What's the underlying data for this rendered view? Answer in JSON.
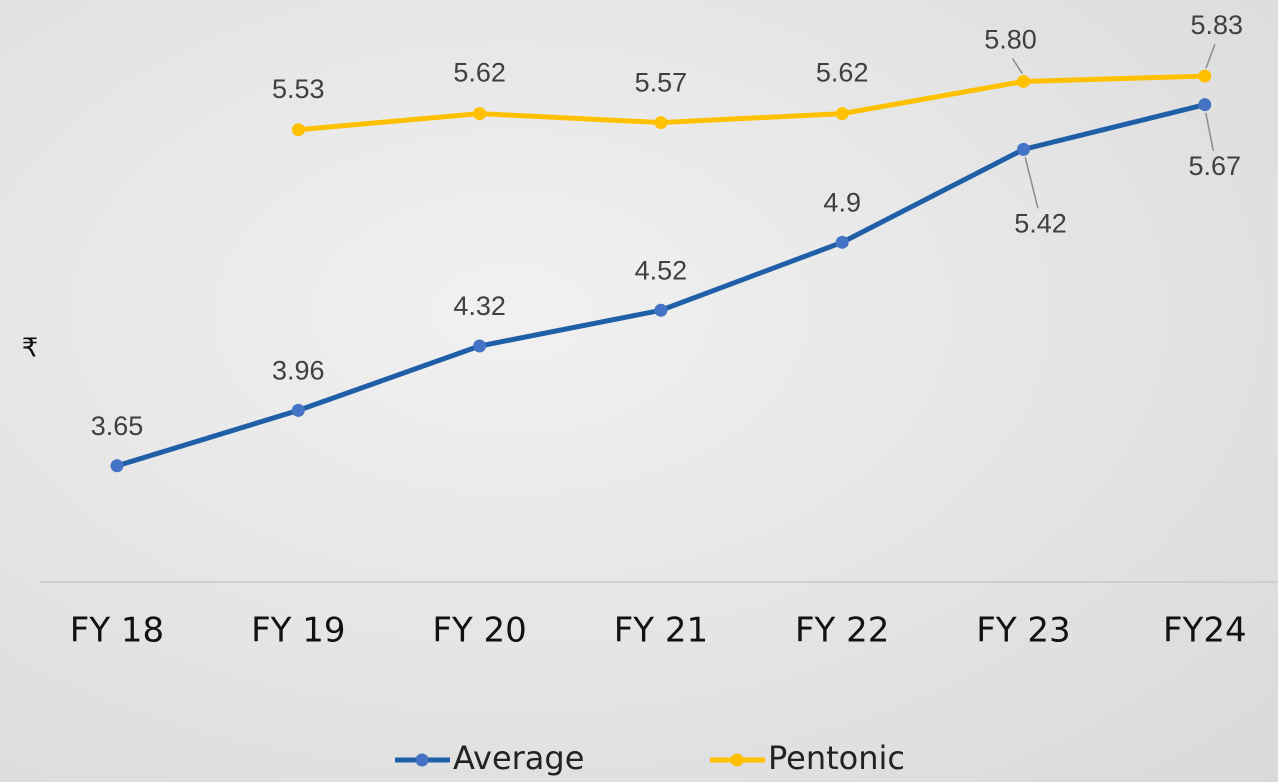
{
  "chart_data": {
    "type": "line",
    "y_label": "₹",
    "categories": [
      "FY 18",
      "FY 19",
      "FY 20",
      "FY 21",
      "FY 22",
      "FY 23",
      "FY24"
    ],
    "series": [
      {
        "name": "Average",
        "color": "#1f5fa8",
        "marker_color": "#4472c4",
        "values": [
          3.65,
          3.96,
          4.32,
          4.52,
          4.9,
          5.42,
          5.67
        ]
      },
      {
        "name": "Pentonic",
        "color": "#ffc000",
        "marker_color": "#ffc000",
        "values": [
          null,
          5.53,
          5.62,
          5.57,
          5.62,
          5.8,
          5.83
        ],
        "value_labels": [
          null,
          "5.53",
          "5.62",
          "5.57",
          "5.62",
          "5.80",
          "5.83"
        ]
      }
    ],
    "ylim": [
      3,
      6.25
    ]
  }
}
